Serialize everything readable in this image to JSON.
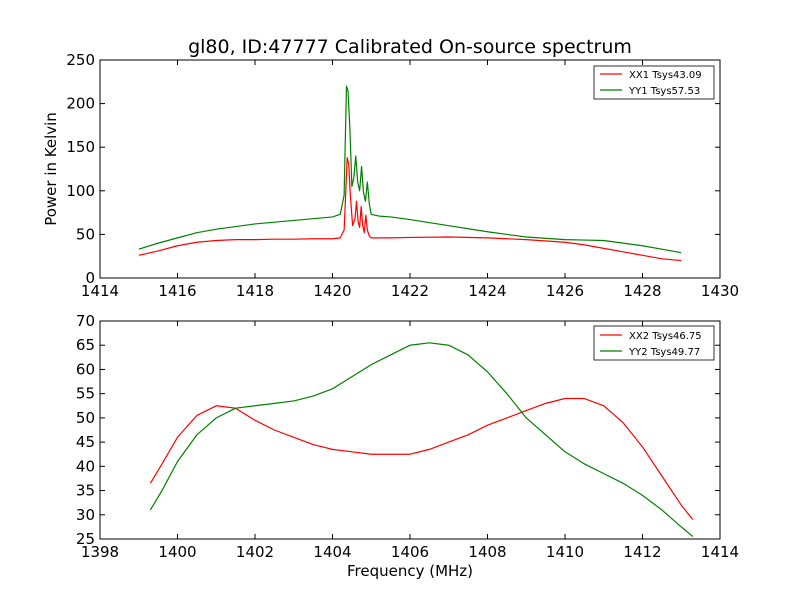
{
  "figure": {
    "title": "gl80, ID:47777 Calibrated On-source spectrum"
  },
  "chart_data": [
    {
      "type": "line",
      "title": "gl80, ID:47777 Calibrated On-source spectrum",
      "xlabel": "",
      "ylabel": "Power in Kelvin",
      "xlim": [
        1414,
        1430
      ],
      "ylim": [
        0,
        250
      ],
      "xticks": [
        1414,
        1416,
        1418,
        1420,
        1422,
        1424,
        1426,
        1428,
        1430
      ],
      "yticks": [
        0,
        50,
        100,
        150,
        200,
        250
      ],
      "grid": false,
      "legend_position": "top-right",
      "series": [
        {
          "name": "XX1 Tsys43.09",
          "color": "#ff0000",
          "x": [
            1415.0,
            1415.5,
            1416.0,
            1416.5,
            1417.0,
            1417.5,
            1418.0,
            1418.5,
            1419.0,
            1419.5,
            1420.0,
            1420.2,
            1420.3,
            1420.38,
            1420.42,
            1420.46,
            1420.52,
            1420.58,
            1420.62,
            1420.66,
            1420.7,
            1420.74,
            1420.78,
            1420.82,
            1420.86,
            1420.9,
            1420.95,
            1421.0,
            1421.5,
            1422.0,
            1423.0,
            1424.0,
            1425.0,
            1426.0,
            1426.5,
            1427.0,
            1427.5,
            1428.0,
            1428.5,
            1429.0
          ],
          "y": [
            26,
            31,
            37,
            41,
            43,
            44,
            44,
            44.5,
            44.5,
            45,
            45,
            46,
            55,
            138,
            130,
            95,
            60,
            68,
            88,
            65,
            58,
            82,
            60,
            52,
            72,
            55,
            48,
            46,
            46,
            46.5,
            47,
            46,
            44,
            41,
            38,
            34,
            30,
            26,
            22,
            20
          ]
        },
        {
          "name": "YY1 Tsys57.53",
          "color": "#008000",
          "x": [
            1415.0,
            1415.5,
            1416.0,
            1416.5,
            1417.0,
            1417.5,
            1418.0,
            1418.5,
            1419.0,
            1419.5,
            1420.0,
            1420.2,
            1420.3,
            1420.36,
            1420.4,
            1420.45,
            1420.5,
            1420.55,
            1420.6,
            1420.65,
            1420.7,
            1420.75,
            1420.8,
            1420.85,
            1420.9,
            1420.95,
            1421.0,
            1421.2,
            1421.5,
            1422.0,
            1423.0,
            1424.0,
            1425.0,
            1426.0,
            1426.5,
            1427.0,
            1427.5,
            1428.0,
            1428.5,
            1429.0
          ],
          "y": [
            33,
            40,
            46,
            52,
            56,
            59,
            62,
            64,
            66,
            68,
            70,
            73,
            95,
            220,
            215,
            170,
            105,
            115,
            140,
            110,
            100,
            128,
            98,
            88,
            110,
            85,
            73,
            71,
            70,
            67,
            60,
            53,
            47,
            44,
            43.5,
            43,
            40,
            37,
            33,
            29
          ]
        }
      ]
    },
    {
      "type": "line",
      "title": "",
      "xlabel": "Frequency (MHz)",
      "ylabel": "",
      "xlim": [
        1398,
        1414
      ],
      "ylim": [
        25,
        70
      ],
      "xticks": [
        1398,
        1400,
        1402,
        1404,
        1406,
        1408,
        1410,
        1412,
        1414
      ],
      "yticks": [
        25,
        30,
        35,
        40,
        45,
        50,
        55,
        60,
        65,
        70
      ],
      "grid": false,
      "legend_position": "top-right",
      "series": [
        {
          "name": "XX2 Tsys46.75",
          "color": "#ff0000",
          "x": [
            1399.3,
            1399.6,
            1400.0,
            1400.5,
            1401.0,
            1401.5,
            1402.0,
            1402.5,
            1403.0,
            1403.5,
            1404.0,
            1404.5,
            1405.0,
            1405.5,
            1406.0,
            1406.5,
            1407.0,
            1407.5,
            1408.0,
            1408.5,
            1409.0,
            1409.5,
            1410.0,
            1410.5,
            1411.0,
            1411.5,
            1412.0,
            1412.5,
            1413.0,
            1413.3
          ],
          "y": [
            36.5,
            40.5,
            46,
            50.5,
            52.5,
            52,
            49.5,
            47.5,
            46,
            44.5,
            43.5,
            43,
            42.5,
            42.5,
            42.5,
            43.5,
            45,
            46.5,
            48.5,
            50,
            51.5,
            53,
            54,
            54,
            52.5,
            49,
            44,
            38,
            32,
            29
          ]
        },
        {
          "name": "YY2 Tsys49.77",
          "color": "#008000",
          "x": [
            1399.3,
            1399.6,
            1400.0,
            1400.5,
            1401.0,
            1401.5,
            1402.0,
            1402.5,
            1403.0,
            1403.5,
            1404.0,
            1404.5,
            1405.0,
            1405.5,
            1406.0,
            1406.5,
            1407.0,
            1407.5,
            1408.0,
            1408.5,
            1409.0,
            1409.5,
            1410.0,
            1410.5,
            1411.0,
            1411.5,
            1412.0,
            1412.5,
            1413.0,
            1413.3
          ],
          "y": [
            31,
            35,
            41,
            46.5,
            50,
            52,
            52.5,
            53,
            53.5,
            54.5,
            56,
            58.5,
            61,
            63,
            65,
            65.5,
            65,
            63,
            59.5,
            55,
            50,
            46.5,
            43,
            40.5,
            38.5,
            36.5,
            34,
            31,
            27.5,
            25.5
          ]
        }
      ]
    }
  ]
}
